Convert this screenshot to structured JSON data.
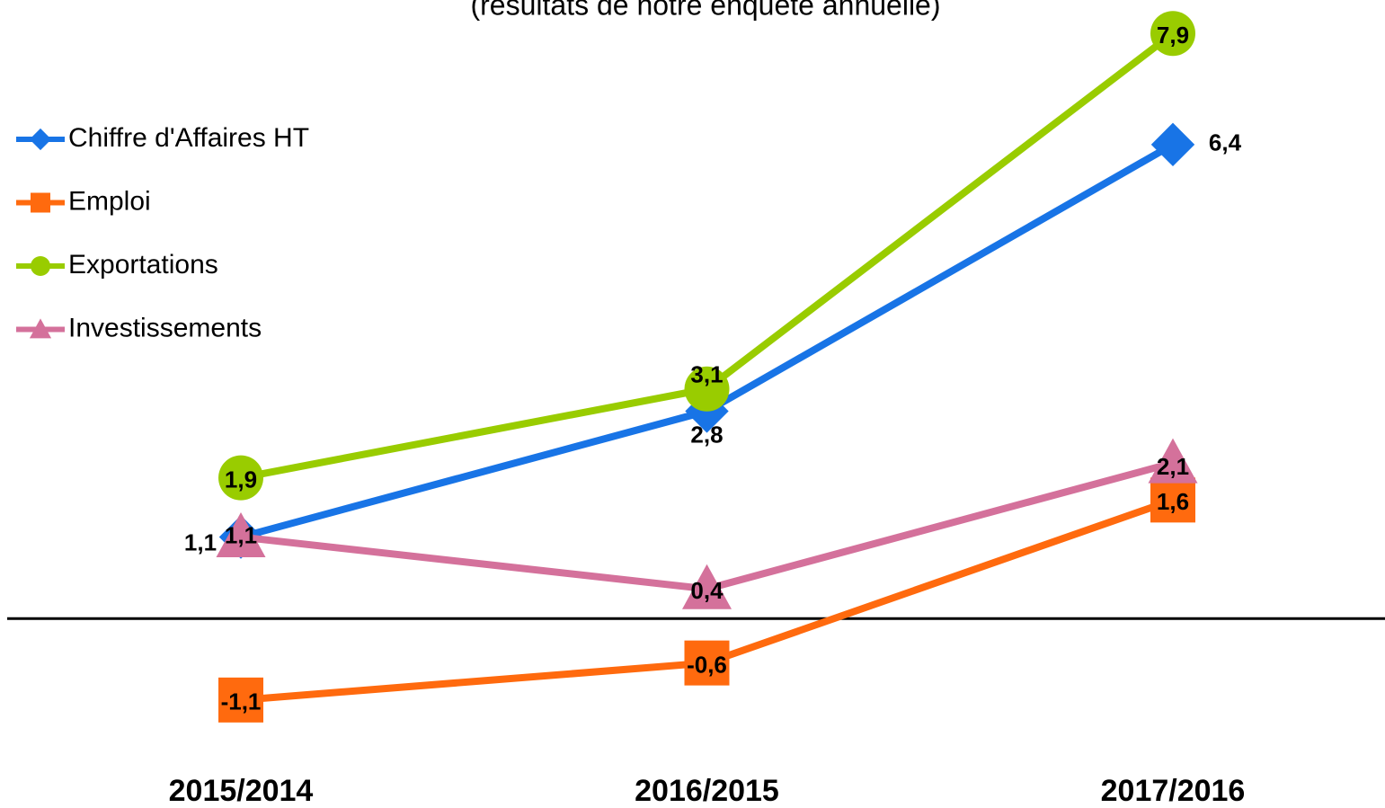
{
  "chart_data": {
    "type": "line",
    "subtitle": "(résultats de notre enquête annuelle)",
    "categories": [
      "2015/2014",
      "2016/2015",
      "2017/2016"
    ],
    "series": [
      {
        "name": "Chiffre d'Affaires HT",
        "color": "#1874e6",
        "marker": "diamond",
        "values": [
          1.1,
          2.8,
          6.4
        ],
        "value_labels": [
          "1,1",
          "2,8",
          "6,4"
        ]
      },
      {
        "name": "Emploi",
        "color": "#ff6a0e",
        "marker": "square",
        "values": [
          -1.1,
          -0.6,
          1.6
        ],
        "value_labels": [
          "-1,1",
          "-0,6",
          "1,6"
        ]
      },
      {
        "name": "Exportations",
        "color": "#99cc00",
        "marker": "circle",
        "values": [
          1.9,
          3.1,
          7.9
        ],
        "value_labels": [
          "1,9",
          "3,1",
          "7,9"
        ]
      },
      {
        "name": "Investissements",
        "color": "#d4719b",
        "marker": "triangle",
        "values": [
          1.1,
          0.4,
          2.1
        ],
        "value_labels": [
          "1,1",
          "0,4",
          "2,1"
        ]
      }
    ],
    "ylim": [
      -2,
      8
    ],
    "legend": "left"
  }
}
